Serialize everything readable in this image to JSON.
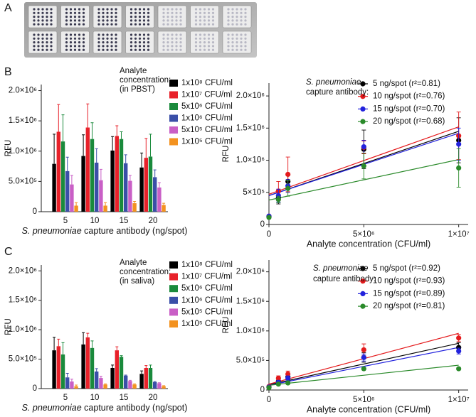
{
  "panel_labels": [
    "A",
    "B",
    "C"
  ],
  "chart_data": [
    {
      "type": "bar",
      "ylabel": "RFU",
      "xlabel": [
        "S. pneumoniae",
        " capture antibody (ng/spot)"
      ],
      "annotation": [
        "Analyte",
        "concentration:",
        "(in PBST)"
      ],
      "categories": [
        "5",
        "10",
        "15",
        "20"
      ],
      "ylim": [
        0,
        2100000
      ],
      "yticks": [
        0,
        {
          "value": 500000,
          "label": "5.0×10⁵"
        },
        {
          "value": 1000000,
          "label": "1.0×10⁶"
        },
        {
          "value": 1500000,
          "label": "1.5×10⁶"
        },
        {
          "value": 2000000,
          "label": "2.0×10⁶"
        }
      ],
      "series": [
        {
          "name": "1x10⁸ CFU/ml",
          "color": "#000000",
          "values": [
            790000,
            920000,
            1010000,
            730000
          ],
          "errors": [
            490000,
            350000,
            230000,
            240000
          ]
        },
        {
          "name": "1x10⁷ CFU/ml",
          "color": "#e8212a",
          "values": [
            1320000,
            1390000,
            1250000,
            890000
          ],
          "errors": [
            450000,
            390000,
            170000,
            320000
          ]
        },
        {
          "name": "5x10⁶ CFU/ml",
          "color": "#1a8a3c",
          "values": [
            1160000,
            1200000,
            1200000,
            910000
          ],
          "errors": [
            440000,
            270000,
            120000,
            370000
          ]
        },
        {
          "name": "1x10⁶ CFU/ml",
          "color": "#3a4fa8",
          "values": [
            670000,
            810000,
            800000,
            570000
          ],
          "errors": [
            230000,
            230000,
            140000,
            120000
          ]
        },
        {
          "name": "5x10⁵ CFU/ml",
          "color": "#c95fc6",
          "values": [
            450000,
            520000,
            510000,
            400000
          ],
          "errors": [
            150000,
            180000,
            90000,
            80000
          ]
        },
        {
          "name": "1x10⁵ CFU/ml",
          "color": "#f39220",
          "values": [
            100000,
            100000,
            140000,
            110000
          ],
          "errors": [
            50000,
            50000,
            30000,
            30000
          ]
        }
      ]
    },
    {
      "type": "scatter",
      "ylabel": "RFU",
      "xlabel": "Analyte concentration (CFU/ml)",
      "legend_title": [
        "S. pneumoniae",
        "capture antibody:"
      ],
      "x": [
        0,
        500000,
        1000000,
        5000000,
        10000000
      ],
      "xlim": [
        0,
        10500000
      ],
      "xticks": [
        0,
        {
          "value": 5000000,
          "label": "5×10⁶"
        },
        {
          "value": 10000000,
          "label": "1×10⁷"
        }
      ],
      "ylim": [
        0,
        2200000
      ],
      "yticks": [
        0,
        {
          "value": 500000,
          "label": "5×10⁵"
        },
        {
          "value": 1000000,
          "label": "1.0×10⁶"
        },
        {
          "value": 1500000,
          "label": "1.5×10⁶"
        },
        {
          "value": 2000000,
          "label": "2.0×10⁶"
        }
      ],
      "series": [
        {
          "name": "5 ng/spot (r²=0.81)",
          "color": "#000000",
          "values": [
            120000,
            420000,
            670000,
            1170000,
            1310000
          ],
          "errors": [
            20000,
            100000,
            120000,
            300000,
            350000
          ],
          "fit_x": [
            0,
            10000000
          ],
          "fit_values": [
            450000,
            1450000
          ]
        },
        {
          "name": "10 ng/spot (r²=0.76)",
          "color": "#e41a1c",
          "values": [
            130000,
            520000,
            780000,
            1200000,
            1380000
          ],
          "errors": [
            20000,
            150000,
            270000,
            100000,
            370000
          ],
          "fit_x": [
            0,
            10000000
          ],
          "fit_values": [
            470000,
            1520000
          ]
        },
        {
          "name": "15 ng/spot (r²=0.70)",
          "color": "#2222dd",
          "values": [
            130000,
            450000,
            600000,
            1210000,
            1250000
          ],
          "errors": [
            20000,
            100000,
            100000,
            100000,
            250000
          ],
          "fit_x": [
            0,
            10000000
          ],
          "fit_values": [
            450000,
            1420000
          ]
        },
        {
          "name": "20 ng/spot (r²=0.68)",
          "color": "#2a8a2a",
          "values": [
            110000,
            390000,
            560000,
            910000,
            880000
          ],
          "errors": [
            20000,
            50000,
            120000,
            200000,
            300000
          ],
          "fit_x": [
            0,
            10000000
          ],
          "fit_values": [
            380000,
            1010000
          ]
        }
      ]
    },
    {
      "type": "bar",
      "ylabel": "RFU",
      "xlabel": [
        "S. pneumoniae",
        " capture antibody (ng/spot)"
      ],
      "annotation": [
        "Analyte",
        "concentration:",
        "(in saliva)"
      ],
      "categories": [
        "5",
        "10",
        "15",
        "20"
      ],
      "ylim": [
        0,
        2100000
      ],
      "yticks": [
        0,
        {
          "value": 500000,
          "label": "5.0×10⁵"
        },
        {
          "value": 1000000,
          "label": "1.0×10⁶"
        },
        {
          "value": 1500000,
          "label": "1.5×10⁶"
        },
        {
          "value": 2000000,
          "label": "2.0×10⁶"
        }
      ],
      "series": [
        {
          "name": "1x10⁸ CFU/ml",
          "color": "#000000",
          "values": [
            650000,
            750000,
            350000,
            250000
          ],
          "errors": [
            220000,
            200000,
            50000,
            50000
          ]
        },
        {
          "name": "1x10⁷ CFU/ml",
          "color": "#e8212a",
          "values": [
            720000,
            870000,
            650000,
            350000
          ],
          "errors": [
            120000,
            70000,
            60000,
            40000
          ]
        },
        {
          "name": "5x10⁶ CFU/ml",
          "color": "#1a8a3c",
          "values": [
            580000,
            690000,
            540000,
            350000
          ],
          "errors": [
            200000,
            120000,
            20000,
            50000
          ]
        },
        {
          "name": "1x10⁶ CFU/ml",
          "color": "#3a4fa8",
          "values": [
            190000,
            290000,
            220000,
            110000
          ],
          "errors": [
            70000,
            50000,
            10000,
            10000
          ]
        },
        {
          "name": "5x10⁵ CFU/ml",
          "color": "#c95fc6",
          "values": [
            120000,
            180000,
            130000,
            90000
          ],
          "errors": [
            40000,
            30000,
            10000,
            10000
          ]
        },
        {
          "name": "1x10⁵ CFU/ml",
          "color": "#f39220",
          "values": [
            40000,
            70000,
            70000,
            40000
          ],
          "errors": [
            20000,
            10000,
            10000,
            10000
          ]
        }
      ]
    },
    {
      "type": "scatter",
      "ylabel": "RFU",
      "xlabel": "Analyte concentration (CFU/ml)",
      "legend_title": [
        "S. pneumoniae",
        "capture antibody:"
      ],
      "x": [
        0,
        500000,
        1000000,
        5000000,
        10000000
      ],
      "xlim": [
        0,
        10500000
      ],
      "xticks": [
        0,
        {
          "value": 5000000,
          "label": "5×10⁶"
        },
        {
          "value": 10000000,
          "label": "1×10⁷"
        }
      ],
      "ylim": [
        0,
        2200000
      ],
      "yticks": [
        0,
        {
          "value": 500000,
          "label": "5.0×10⁵"
        },
        {
          "value": 1000000,
          "label": "1.0×10⁶"
        },
        {
          "value": 1500000,
          "label": "1.5×10⁶"
        },
        {
          "value": 2000000,
          "label": "2.0×10⁶"
        }
      ],
      "series": [
        {
          "name": "5 ng/spot (r²=0.92)",
          "color": "#000000",
          "values": [
            50000,
            150000,
            220000,
            550000,
            720000
          ],
          "errors": [
            10000,
            40000,
            40000,
            80000,
            80000
          ],
          "fit_x": [
            0,
            10000000
          ],
          "fit_values": [
            90000,
            790000
          ]
        },
        {
          "name": "10 ng/spot (r²=0.93)",
          "color": "#e41a1c",
          "values": [
            60000,
            200000,
            270000,
            680000,
            880000
          ],
          "errors": [
            10000,
            40000,
            50000,
            100000,
            60000
          ],
          "fit_x": [
            0,
            10000000
          ],
          "fit_values": [
            100000,
            960000
          ]
        },
        {
          "name": "15 ng/spot (r²=0.89)",
          "color": "#2222dd",
          "values": [
            50000,
            130000,
            200000,
            550000,
            660000
          ],
          "errors": [
            10000,
            30000,
            40000,
            60000,
            50000
          ],
          "fit_x": [
            0,
            10000000
          ],
          "fit_values": [
            80000,
            720000
          ]
        },
        {
          "name": "20 ng/spot (r²=0.81)",
          "color": "#2a8a2a",
          "values": [
            40000,
            100000,
            120000,
            360000,
            360000
          ],
          "errors": [
            10000,
            20000,
            20000,
            20000,
            20000
          ],
          "fit_x": [
            0,
            10000000
          ],
          "fit_values": [
            80000,
            420000
          ]
        }
      ]
    }
  ]
}
